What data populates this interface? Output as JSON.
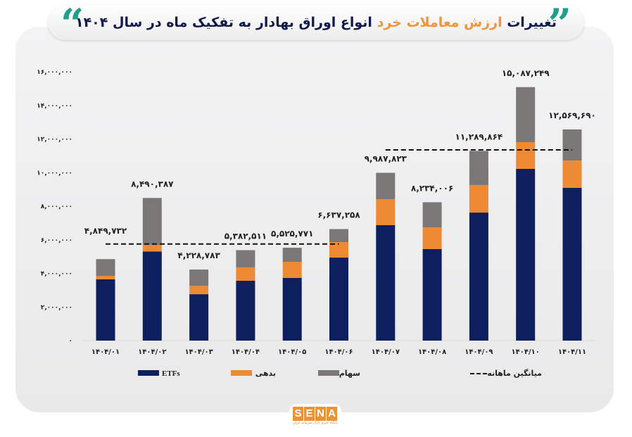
{
  "title": {
    "part1": "تغییرات",
    "highlight": "ارزش معاملات خرد",
    "part2": "انواع اوراق بهادار به تفکیک ماه در سال ۱۴۰۴"
  },
  "colors": {
    "ETFs": "#0e1f5e",
    "debt": "#ef8a34",
    "stocks": "#7b7777",
    "average": "#111111",
    "quote": "#1f9e8c",
    "highlight": "#f0953a"
  },
  "icons": {
    "quote_left": "double-quote-icon",
    "quote_right": "double-quote-icon"
  },
  "logo": {
    "letters": [
      "S",
      "E",
      "N",
      "A"
    ],
    "subtitle": "پایگاه خبری بازار سرمایه ایران"
  },
  "chart_data": {
    "type": "bar",
    "stacked": true,
    "title": "تغییرات ارزش معاملات خرد انواع اوراق بهادار به تفکیک ماه در سال ۱۴۰۴",
    "categories": [
      "۱۴۰۴/۰۱",
      "۱۴۰۴/۰۲",
      "۱۴۰۴/۰۳",
      "۱۴۰۴/۰۴",
      "۱۴۰۴/۰۵",
      "۱۴۰۴/۰۶",
      "۱۴۰۴/۰۷",
      "۱۴۰۴/۰۸",
      "۱۴۰۴/۰۹",
      "۱۴۰۴/۱۰",
      "۱۴۰۴/۱۱"
    ],
    "series": [
      {
        "name": "ETFs",
        "key": "ETFs",
        "values": [
          3650000,
          5300000,
          2760000,
          3560000,
          3730000,
          4940000,
          6870000,
          5450000,
          7620000,
          10220000,
          9090000
        ]
      },
      {
        "name": "بدهی",
        "key": "debt",
        "values": [
          200000,
          400000,
          500000,
          800000,
          960000,
          920000,
          1550000,
          1290000,
          1640000,
          1590000,
          1630000
        ]
      },
      {
        "name": "سهام",
        "key": "stocks",
        "values": [
          999732,
          2790387,
          968783,
          1022511,
          835771,
          777258,
          1567823,
          1494006,
          2029864,
          3277249,
          1849690
        ]
      }
    ],
    "totals": [
      4849732,
      8490387,
      4228783,
      5382511,
      5525771,
      6637258,
      9987823,
      8234006,
      11289864,
      15087249,
      12569690
    ],
    "total_labels": [
      "۴,۸۴۹,۷۳۲",
      "۸,۴۹۰,۳۸۷",
      "۴,۲۲۸,۷۸۳",
      "۵,۳۸۲,۵۱۱",
      "۵,۵۲۵,۷۷۱",
      "۶,۶۳۷,۲۵۸",
      "۹,۹۸۷,۸۲۳",
      "۸,۲۳۴,۰۰۶",
      "۱۱,۲۸۹,۸۶۴",
      "۱۵,۰۸۷,۲۴۹",
      "۱۲,۵۶۹,۶۹۰"
    ],
    "average_lines": [
      {
        "name": "میانگین ماهانه",
        "from": "۱۴۰۴/۰۱",
        "to": "۱۴۰۴/۰۶",
        "value": 5750000
      },
      {
        "name": "میانگین ماهانه",
        "from": "۱۴۰۴/۰۷",
        "to": "۱۴۰۴/۱۱",
        "value": 11350000
      }
    ],
    "ylim": [
      0,
      16000000
    ],
    "yticks": [
      0,
      2000000,
      4000000,
      6000000,
      8000000,
      10000000,
      12000000,
      14000000,
      16000000
    ],
    "ytick_labels": [
      "۰",
      "۲,۰۰۰,۰۰۰",
      "۴,۰۰۰,۰۰۰",
      "۶,۰۰۰,۰۰۰",
      "۸,۰۰۰,۰۰۰",
      "۱۰,۰۰۰,۰۰۰",
      "۱۲,۰۰۰,۰۰۰",
      "۱۴,۰۰۰,۰۰۰",
      "۱۶,۰۰۰,۰۰۰"
    ],
    "grid": false,
    "legend": {
      "placement": "bottom",
      "items": [
        "ETFs",
        "بدهی",
        "سهام",
        "میانگین ماهانه"
      ]
    }
  }
}
